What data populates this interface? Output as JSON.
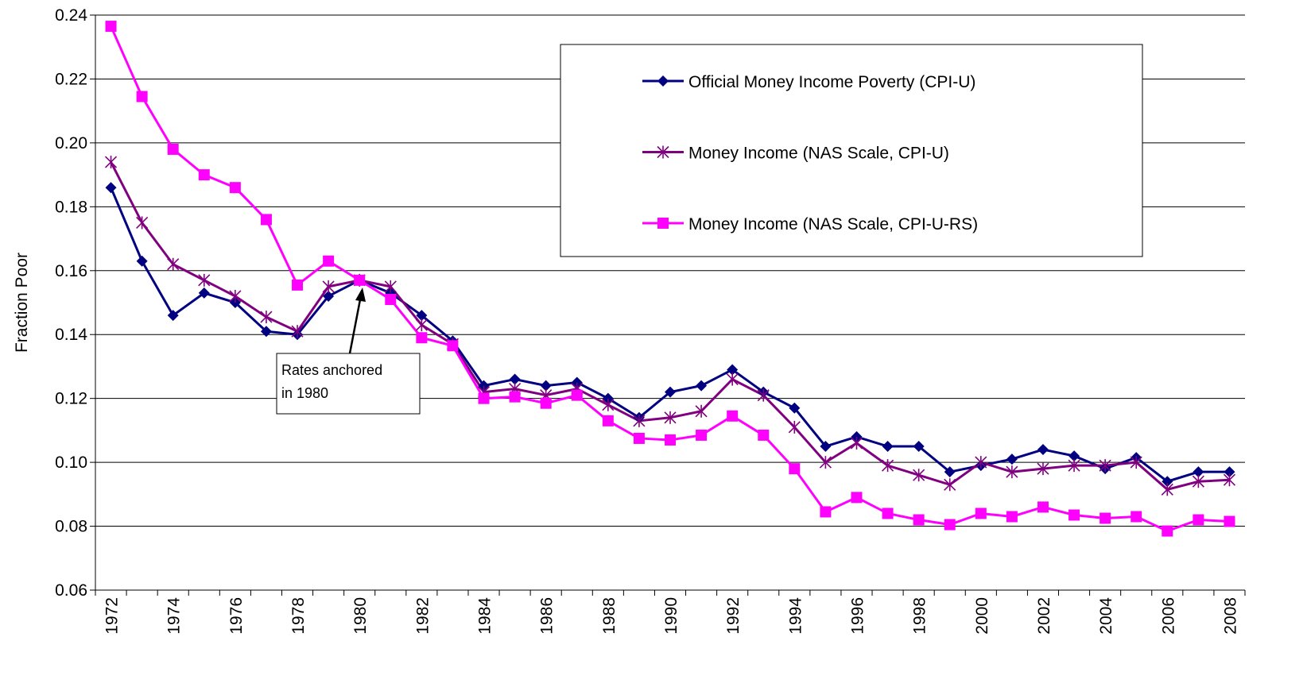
{
  "chart_data": {
    "type": "line",
    "y_label": "Fraction Poor",
    "categories": [
      "1972",
      null,
      "1974",
      null,
      "1976",
      null,
      "1978",
      null,
      "1980",
      null,
      "1982",
      null,
      "1984",
      null,
      "1986",
      null,
      "1988",
      null,
      "1990",
      null,
      "1992",
      null,
      "1994",
      null,
      "1996",
      null,
      "1998",
      null,
      "2000",
      null,
      "2002",
      null,
      "2004",
      null,
      "2006",
      null,
      "2008"
    ],
    "series": [
      {
        "name": "Official Money Income Poverty (CPI-U)",
        "color": "#000080",
        "marker": "diamond",
        "values": [
          0.186,
          0.163,
          0.146,
          0.153,
          0.15,
          0.141,
          0.14,
          0.152,
          0.157,
          0.153,
          0.146,
          0.138,
          0.124,
          0.126,
          0.124,
          0.125,
          0.12,
          0.114,
          0.122,
          0.124,
          0.129,
          0.122,
          0.117,
          0.105,
          0.108,
          0.105,
          0.105,
          0.097,
          0.099,
          0.101,
          0.104,
          0.102,
          0.098,
          0.1015,
          0.094,
          0.097,
          0.097
        ]
      },
      {
        "name": "Money Income (NAS Scale, CPI-U)",
        "color": "#800080",
        "marker": "star",
        "values": [
          0.194,
          0.175,
          0.162,
          0.157,
          0.152,
          0.1455,
          0.141,
          0.155,
          0.157,
          0.155,
          0.143,
          0.137,
          0.122,
          0.123,
          0.121,
          0.123,
          0.118,
          0.113,
          0.114,
          0.116,
          0.126,
          0.121,
          0.111,
          0.1,
          0.106,
          0.099,
          0.096,
          0.093,
          0.1,
          0.097,
          0.098,
          0.099,
          0.099,
          0.1,
          0.0915,
          0.094,
          0.0945
        ]
      },
      {
        "name": "Money Income (NAS Scale, CPI-U-RS)",
        "color": "#ff00ff",
        "marker": "square",
        "values": [
          0.2365,
          0.2145,
          0.198,
          0.19,
          0.186,
          0.176,
          0.1555,
          0.163,
          0.157,
          0.151,
          0.139,
          0.1365,
          0.12,
          0.1205,
          0.1185,
          0.121,
          0.113,
          0.1075,
          0.107,
          0.1085,
          0.1145,
          0.1085,
          0.098,
          0.0845,
          0.089,
          0.084,
          0.082,
          0.0805,
          0.084,
          0.083,
          0.086,
          0.0835,
          0.0825,
          0.083,
          0.0785,
          0.082,
          0.0815
        ]
      }
    ],
    "ylim": [
      0.06,
      0.24
    ],
    "yticks": [
      0.06,
      0.08,
      {
        "value": 0.1,
        "label": "0.10"
      },
      0.12,
      0.14,
      0.16,
      0.18,
      {
        "value": 0.2,
        "label": "0.20"
      },
      0.22,
      0.24
    ],
    "grid": true,
    "legend": "upper-right",
    "annotation": {
      "lines": [
        "Rates anchored",
        "in 1980"
      ]
    }
  }
}
